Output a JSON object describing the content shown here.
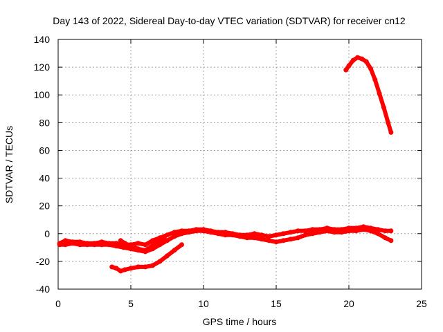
{
  "chart_data": {
    "type": "scatter",
    "title": "Day 143 of 2022, Sidereal Day-to-day VTEC variation (SDTVAR) for receiver cn12",
    "xlabel": "GPS time / hours",
    "ylabel": "SDTVAR / TECUs",
    "xlim": [
      0,
      25
    ],
    "ylim": [
      -40,
      140
    ],
    "xticks": [
      0,
      5,
      10,
      15,
      20,
      25
    ],
    "yticks": [
      -40,
      -20,
      0,
      20,
      40,
      60,
      80,
      100,
      120,
      140
    ],
    "grid": true,
    "series_color": "#ff0000",
    "series": [
      {
        "name": "main-band-upper",
        "points": [
          [
            0.1,
            -7
          ],
          [
            0.5,
            -5
          ],
          [
            1.0,
            -6
          ],
          [
            1.5,
            -6
          ],
          [
            2.0,
            -7
          ],
          [
            2.5,
            -7
          ],
          [
            3.0,
            -6
          ],
          [
            3.5,
            -7
          ],
          [
            4.0,
            -7
          ],
          [
            4.5,
            -8
          ],
          [
            5.0,
            -8
          ],
          [
            5.5,
            -7
          ],
          [
            6.0,
            -8
          ],
          [
            6.5,
            -5
          ],
          [
            7.0,
            -3
          ],
          [
            7.5,
            -1
          ],
          [
            8.0,
            1
          ],
          [
            8.5,
            2
          ],
          [
            9.0,
            2
          ],
          [
            9.5,
            3
          ],
          [
            10.0,
            3
          ],
          [
            10.5,
            2
          ],
          [
            11.0,
            1
          ],
          [
            11.5,
            1
          ],
          [
            12.0,
            0
          ],
          [
            12.5,
            -1
          ],
          [
            13.0,
            -1
          ],
          [
            13.5,
            0
          ],
          [
            14.0,
            -1
          ],
          [
            14.5,
            -2
          ],
          [
            15.0,
            -1
          ],
          [
            15.5,
            0
          ],
          [
            16.0,
            1
          ],
          [
            16.5,
            2
          ],
          [
            17.0,
            2
          ],
          [
            17.5,
            3
          ],
          [
            18.0,
            3
          ],
          [
            18.5,
            4
          ],
          [
            19.0,
            3
          ],
          [
            19.5,
            3
          ],
          [
            20.0,
            4
          ],
          [
            20.5,
            4
          ],
          [
            21.0,
            5
          ],
          [
            21.5,
            4
          ],
          [
            22.0,
            3
          ],
          [
            22.5,
            2
          ],
          [
            22.9,
            2
          ]
        ]
      },
      {
        "name": "main-band-lower",
        "points": [
          [
            0.1,
            -8
          ],
          [
            0.5,
            -8
          ],
          [
            1.0,
            -7
          ],
          [
            1.5,
            -8
          ],
          [
            2.0,
            -8
          ],
          [
            2.5,
            -8
          ],
          [
            3.0,
            -8
          ],
          [
            3.5,
            -8
          ],
          [
            4.0,
            -9
          ],
          [
            4.5,
            -10
          ],
          [
            5.0,
            -11
          ],
          [
            5.5,
            -12
          ],
          [
            6.0,
            -13
          ],
          [
            6.5,
            -11
          ],
          [
            7.0,
            -8
          ],
          [
            7.5,
            -5
          ],
          [
            8.0,
            -2
          ],
          [
            8.5,
            0
          ],
          [
            9.0,
            1
          ],
          [
            9.5,
            2
          ],
          [
            10.0,
            2
          ],
          [
            10.5,
            1
          ],
          [
            11.0,
            0
          ],
          [
            11.5,
            -1
          ],
          [
            12.0,
            -1
          ],
          [
            12.5,
            -2
          ],
          [
            13.0,
            -3
          ],
          [
            13.5,
            -3
          ],
          [
            14.0,
            -4
          ],
          [
            14.5,
            -5
          ],
          [
            15.0,
            -6
          ],
          [
            15.5,
            -5
          ],
          [
            16.0,
            -4
          ],
          [
            16.5,
            -3
          ],
          [
            17.0,
            -1
          ],
          [
            17.5,
            0
          ],
          [
            18.0,
            1
          ],
          [
            18.5,
            2
          ],
          [
            19.0,
            1
          ],
          [
            19.5,
            1
          ],
          [
            20.0,
            2
          ],
          [
            20.5,
            2
          ],
          [
            21.0,
            3
          ],
          [
            21.5,
            2
          ],
          [
            22.0,
            0
          ],
          [
            22.5,
            -3
          ],
          [
            22.9,
            -5
          ]
        ]
      },
      {
        "name": "low-arc",
        "points": [
          [
            3.7,
            -24
          ],
          [
            4.0,
            -25
          ],
          [
            4.3,
            -27
          ],
          [
            4.6,
            -26
          ],
          [
            5.0,
            -25
          ],
          [
            5.5,
            -24
          ],
          [
            6.0,
            -24
          ],
          [
            6.5,
            -23
          ],
          [
            7.0,
            -20
          ],
          [
            7.5,
            -16
          ],
          [
            8.0,
            -12
          ],
          [
            8.5,
            -8
          ]
        ]
      },
      {
        "name": "dip-arc",
        "points": [
          [
            4.3,
            -5
          ],
          [
            4.6,
            -7
          ],
          [
            5.0,
            -9
          ],
          [
            5.5,
            -11
          ],
          [
            6.0,
            -12
          ],
          [
            6.3,
            -10
          ],
          [
            6.8,
            -6
          ],
          [
            7.3,
            -3
          ]
        ]
      },
      {
        "name": "high-arc",
        "points": [
          [
            19.8,
            118
          ],
          [
            20.0,
            121
          ],
          [
            20.3,
            125
          ],
          [
            20.6,
            127
          ],
          [
            20.9,
            126
          ],
          [
            21.2,
            124
          ],
          [
            21.5,
            119
          ],
          [
            21.8,
            111
          ],
          [
            22.1,
            101
          ],
          [
            22.4,
            91
          ],
          [
            22.7,
            80
          ],
          [
            22.9,
            73
          ]
        ]
      }
    ]
  }
}
